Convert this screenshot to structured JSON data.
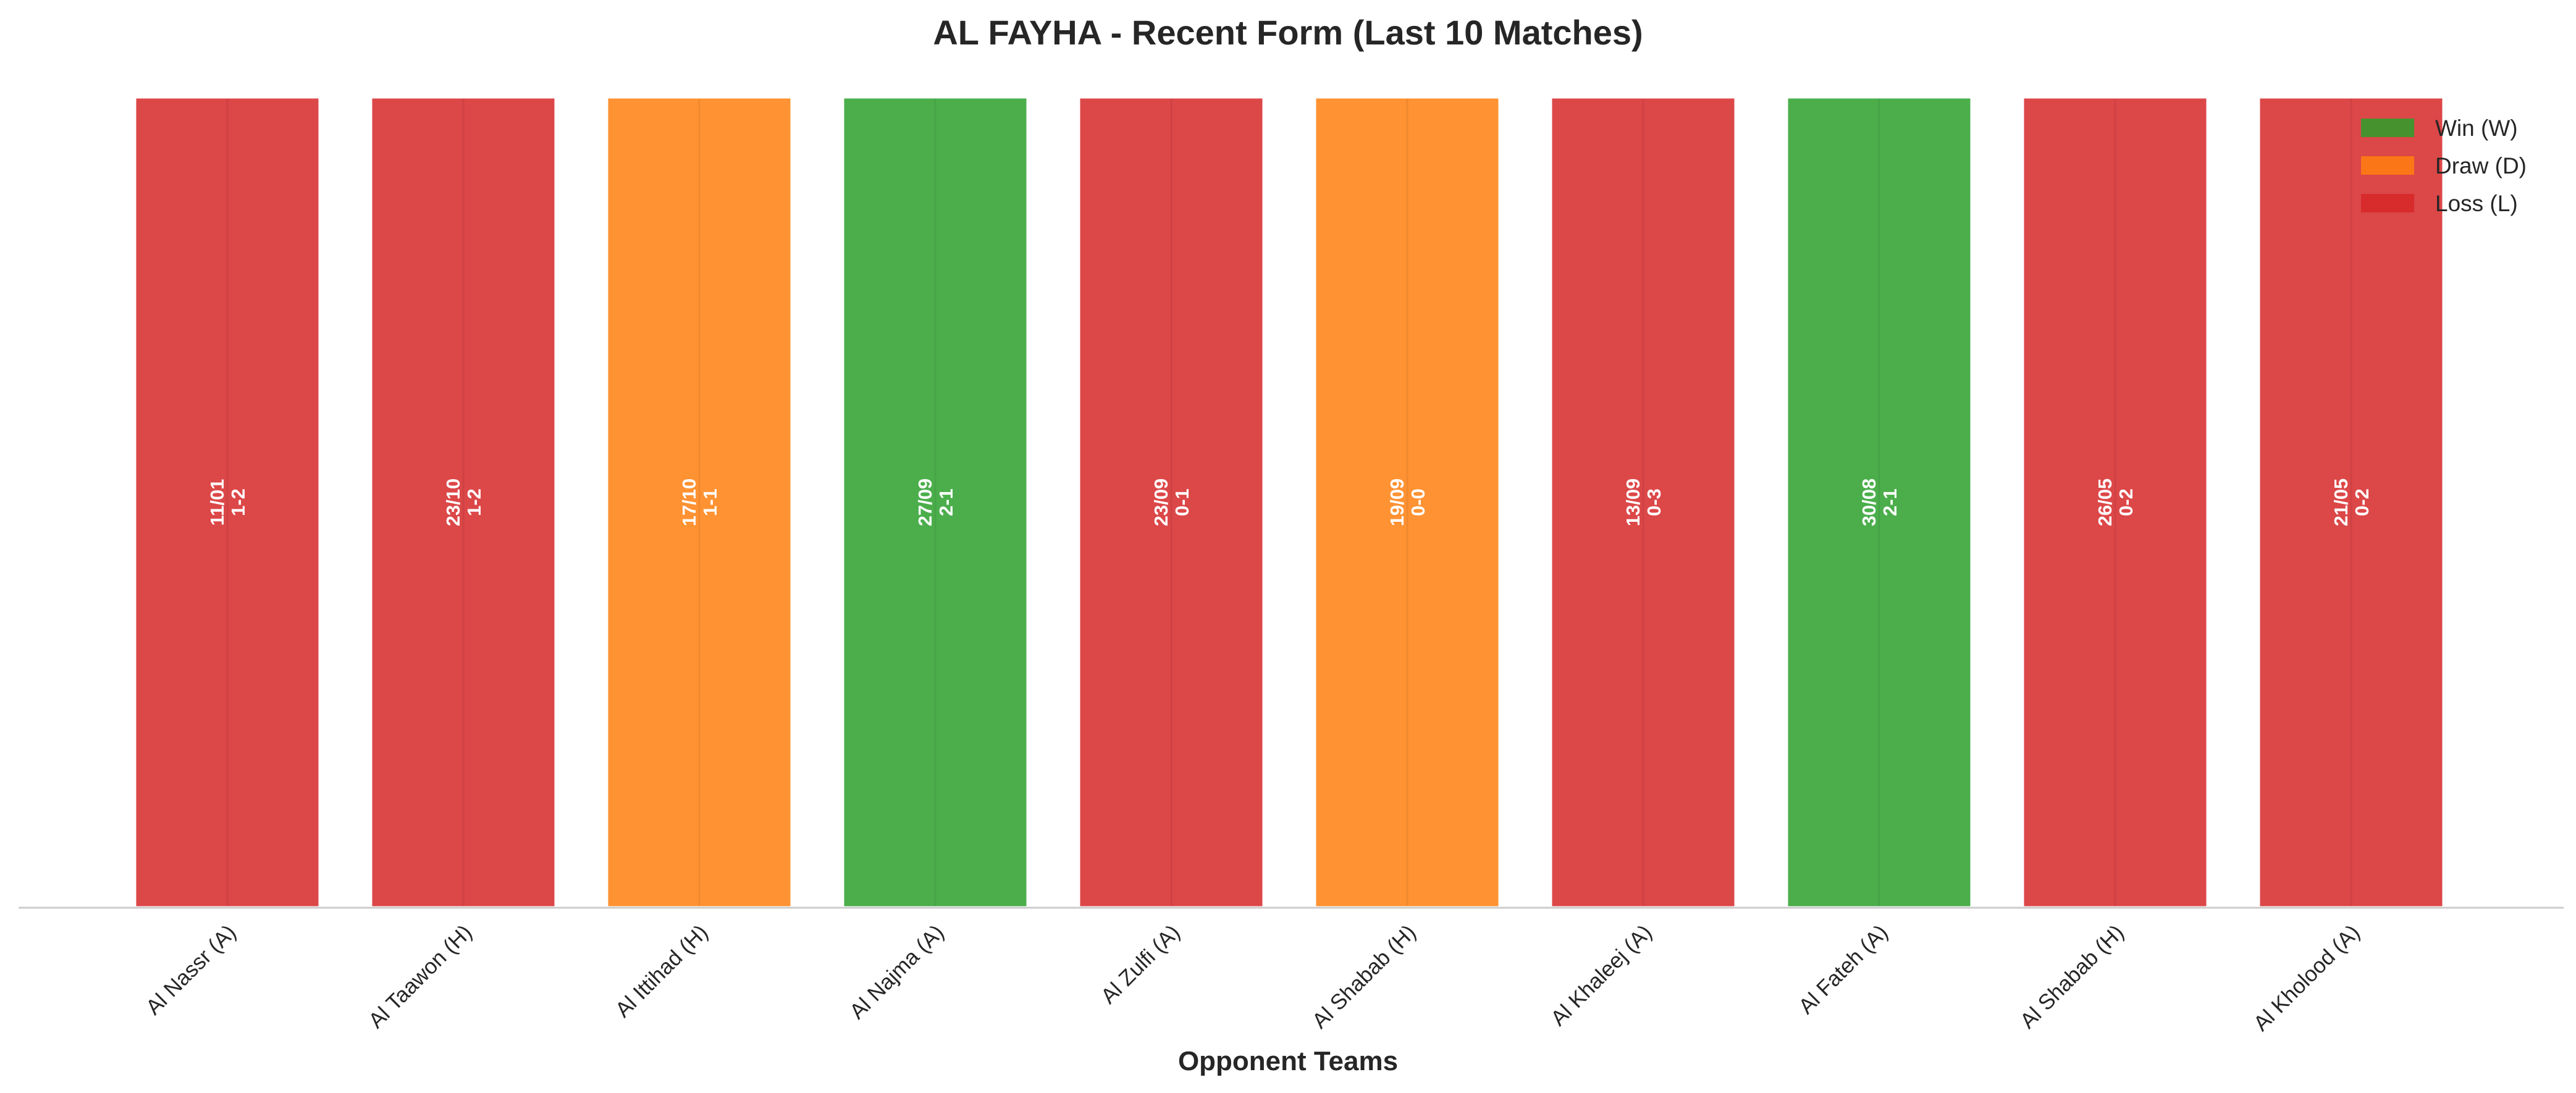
{
  "chart_data": {
    "type": "bar",
    "title": "AL FAYHA - Recent Form (Last 10 Matches)",
    "xlabel": "Opponent Teams",
    "ylabel": "",
    "ylim": [
      0,
      1
    ],
    "grid": false,
    "legend_position": "top-right",
    "categories": [
      "Al Nassr (A)",
      "Al Taawon (H)",
      "Al Ittihad (H)",
      "Al Najma (A)",
      "Al Zulfi (A)",
      "Al Shabab (H)",
      "Al Khaleej (A)",
      "Al Fateh (A)",
      "Al Shabab (H)",
      "Al Kholood (A)"
    ],
    "values": [
      1,
      1,
      1,
      1,
      1,
      1,
      1,
      1,
      1,
      1
    ],
    "results": [
      "L",
      "L",
      "D",
      "W",
      "L",
      "D",
      "L",
      "W",
      "L",
      "L"
    ],
    "dates": [
      "11/01",
      "23/10",
      "17/10",
      "27/09",
      "23/09",
      "19/09",
      "13/09",
      "30/08",
      "26/05",
      "21/05"
    ],
    "scores": [
      "1-2",
      "1-2",
      "1-1",
      "2-1",
      "0-1",
      "0-0",
      "0-3",
      "2-1",
      "0-2",
      "0-2"
    ],
    "legend": [
      {
        "key": "W",
        "label": "Win (W)",
        "color": "#2ca02c"
      },
      {
        "key": "D",
        "label": "Draw (D)",
        "color": "#ff7f0e"
      },
      {
        "key": "L",
        "label": "Loss (L)",
        "color": "#d62728"
      }
    ]
  }
}
